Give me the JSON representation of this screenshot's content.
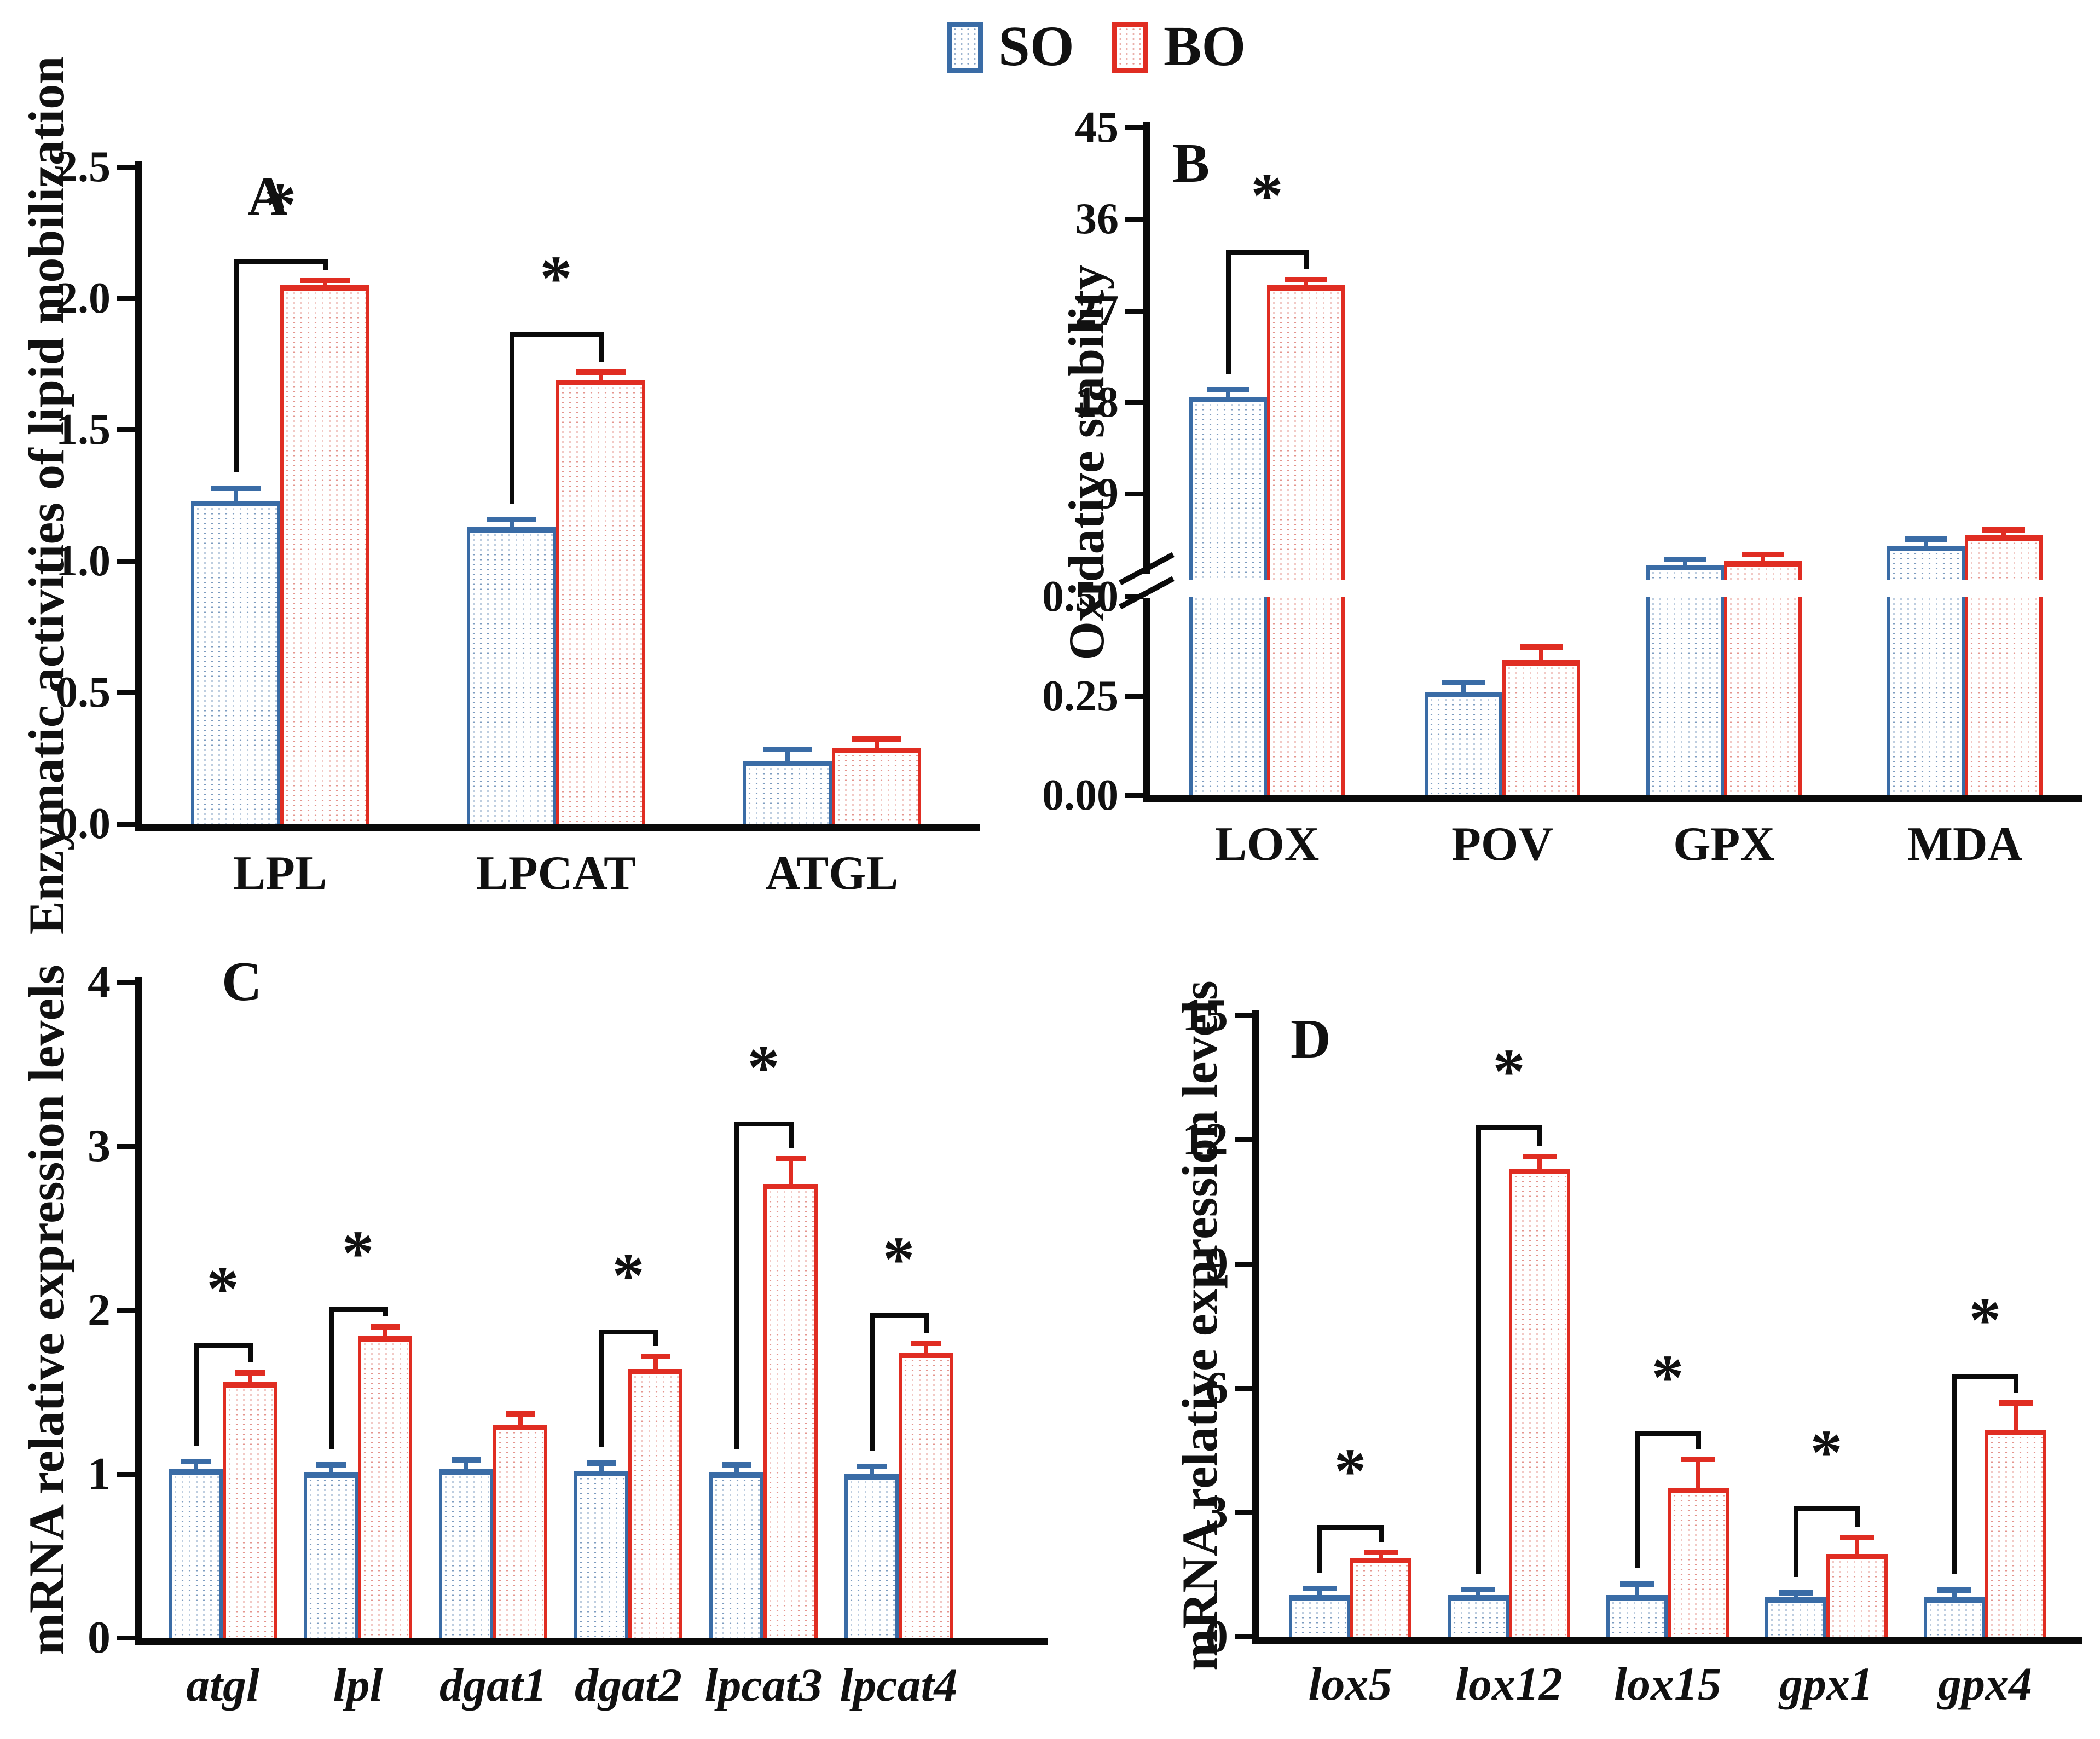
{
  "legend": {
    "items": [
      {
        "label": "SO"
      },
      {
        "label": "BO"
      }
    ]
  },
  "colors": {
    "so_border": "#3a6ca6",
    "so_fill_dot": "#7d9cc0",
    "bo_border": "#e02d22",
    "bo_fill_dot": "#e4958e",
    "axis": "#0a0a0a",
    "text": "#111111",
    "background": "#ffffff"
  },
  "chart_data": [
    {
      "id": "A",
      "type": "bar",
      "panel_label": "A",
      "ylabel": "Enzymatic activities of lipid mobilization",
      "xlabel": "",
      "categories": [
        "LPL",
        "LPCAT",
        "ATGL"
      ],
      "categories_italic": false,
      "ylim": [
        0,
        2.5
      ],
      "ytick_values": [
        0,
        0.5,
        1,
        1.5,
        2,
        2.5
      ],
      "ytick_labels": [
        "0.0",
        "0.5",
        "1.0",
        "1.5",
        "2.0",
        "2.5"
      ],
      "grid": false,
      "series": [
        {
          "name": "SO",
          "values": [
            1.23,
            1.13,
            0.24
          ],
          "errors": [
            0.05,
            0.03,
            0.045
          ]
        },
        {
          "name": "BO",
          "values": [
            2.05,
            1.69,
            0.29
          ],
          "errors": [
            0.02,
            0.03,
            0.035
          ]
        }
      ],
      "significance": [
        {
          "category": "LPL",
          "label": "*",
          "bracket_y": 2.15
        },
        {
          "category": "LPCAT",
          "label": "*",
          "bracket_y": 1.87
        }
      ]
    },
    {
      "id": "B",
      "type": "bar",
      "panel_label": "B",
      "ylabel": "Oxidative stability",
      "xlabel": "",
      "categories": [
        "LOX",
        "POV",
        "GPX",
        "MDA"
      ],
      "categories_italic": false,
      "axis_break": true,
      "lower_ylim": [
        0,
        0.5
      ],
      "lower_ytick_values": [
        0,
        0.25,
        0.5
      ],
      "lower_ytick_labels": [
        "0.00",
        "0.25",
        "0.50"
      ],
      "upper_ylim": [
        0.5,
        45
      ],
      "upper_ytick_values": [
        9,
        18,
        27,
        36,
        45
      ],
      "upper_ytick_labels": [
        "9",
        "18",
        "27",
        "36",
        "45"
      ],
      "grid": false,
      "series": [
        {
          "name": "SO",
          "values": [
            18.5,
            0.26,
            2.0,
            3.9
          ],
          "errors": [
            0.8,
            0.025,
            0.6,
            0.7
          ]
        },
        {
          "name": "BO",
          "values": [
            29.5,
            0.34,
            2.4,
            4.9
          ],
          "errors": [
            0.6,
            0.035,
            0.7,
            0.6
          ]
        }
      ],
      "significance": [
        {
          "category": "LOX",
          "label": "*",
          "bracket_y": 33
        }
      ]
    },
    {
      "id": "C",
      "type": "bar",
      "panel_label": "C",
      "ylabel": "mRNA relative expression levels",
      "xlabel": "",
      "categories": [
        "atgl",
        "lpl",
        "dgat1",
        "dgat2",
        "lpcat3",
        "lpcat4"
      ],
      "categories_italic": true,
      "ylim": [
        0,
        4
      ],
      "ytick_values": [
        0,
        1,
        2,
        3,
        4
      ],
      "ytick_labels": [
        "0",
        "1",
        "2",
        "3",
        "4"
      ],
      "grid": false,
      "series": [
        {
          "name": "SO",
          "values": [
            1.03,
            1.01,
            1.03,
            1.02,
            1.01,
            1.0
          ],
          "errors": [
            0.05,
            0.05,
            0.06,
            0.05,
            0.05,
            0.05
          ]
        },
        {
          "name": "BO",
          "values": [
            1.56,
            1.84,
            1.3,
            1.64,
            2.77,
            1.74
          ],
          "errors": [
            0.06,
            0.06,
            0.07,
            0.08,
            0.16,
            0.06
          ]
        }
      ],
      "significance": [
        {
          "category": "atgl",
          "label": "*",
          "bracket_y": 1.8
        },
        {
          "category": "lpl",
          "label": "*",
          "bracket_y": 2.02
        },
        {
          "category": "dgat2",
          "label": "*",
          "bracket_y": 1.88
        },
        {
          "category": "lpcat3",
          "label": "*",
          "bracket_y": 3.15
        },
        {
          "category": "lpcat4",
          "label": "*",
          "bracket_y": 1.98
        }
      ]
    },
    {
      "id": "D",
      "type": "bar",
      "panel_label": "D",
      "ylabel": "mRNA relative expression levels",
      "xlabel": "",
      "categories": [
        "lox5",
        "lox12",
        "lox15",
        "gpx1",
        "gpx4"
      ],
      "categories_italic": true,
      "ylim": [
        0,
        15
      ],
      "ytick_values": [
        0,
        3,
        6,
        9,
        12,
        15
      ],
      "ytick_labels": [
        "0",
        "3",
        "6",
        "9",
        "12",
        "15"
      ],
      "grid": false,
      "series": [
        {
          "name": "SO",
          "values": [
            1.0,
            1.0,
            1.0,
            0.95,
            0.95
          ],
          "errors": [
            0.18,
            0.15,
            0.28,
            0.12,
            0.18
          ]
        },
        {
          "name": "BO",
          "values": [
            1.9,
            11.3,
            3.6,
            2.0,
            5.0
          ],
          "errors": [
            0.15,
            0.3,
            0.7,
            0.4,
            0.65
          ]
        }
      ],
      "significance": [
        {
          "category": "lox5",
          "label": "*",
          "bracket_y": 2.7
        },
        {
          "category": "lox12",
          "label": "*",
          "bracket_y": 12.35
        },
        {
          "category": "lox15",
          "label": "*",
          "bracket_y": 4.95
        },
        {
          "category": "gpx1",
          "label": "*",
          "bracket_y": 3.15
        },
        {
          "category": "gpx4",
          "label": "*",
          "bracket_y": 6.35
        }
      ]
    }
  ]
}
